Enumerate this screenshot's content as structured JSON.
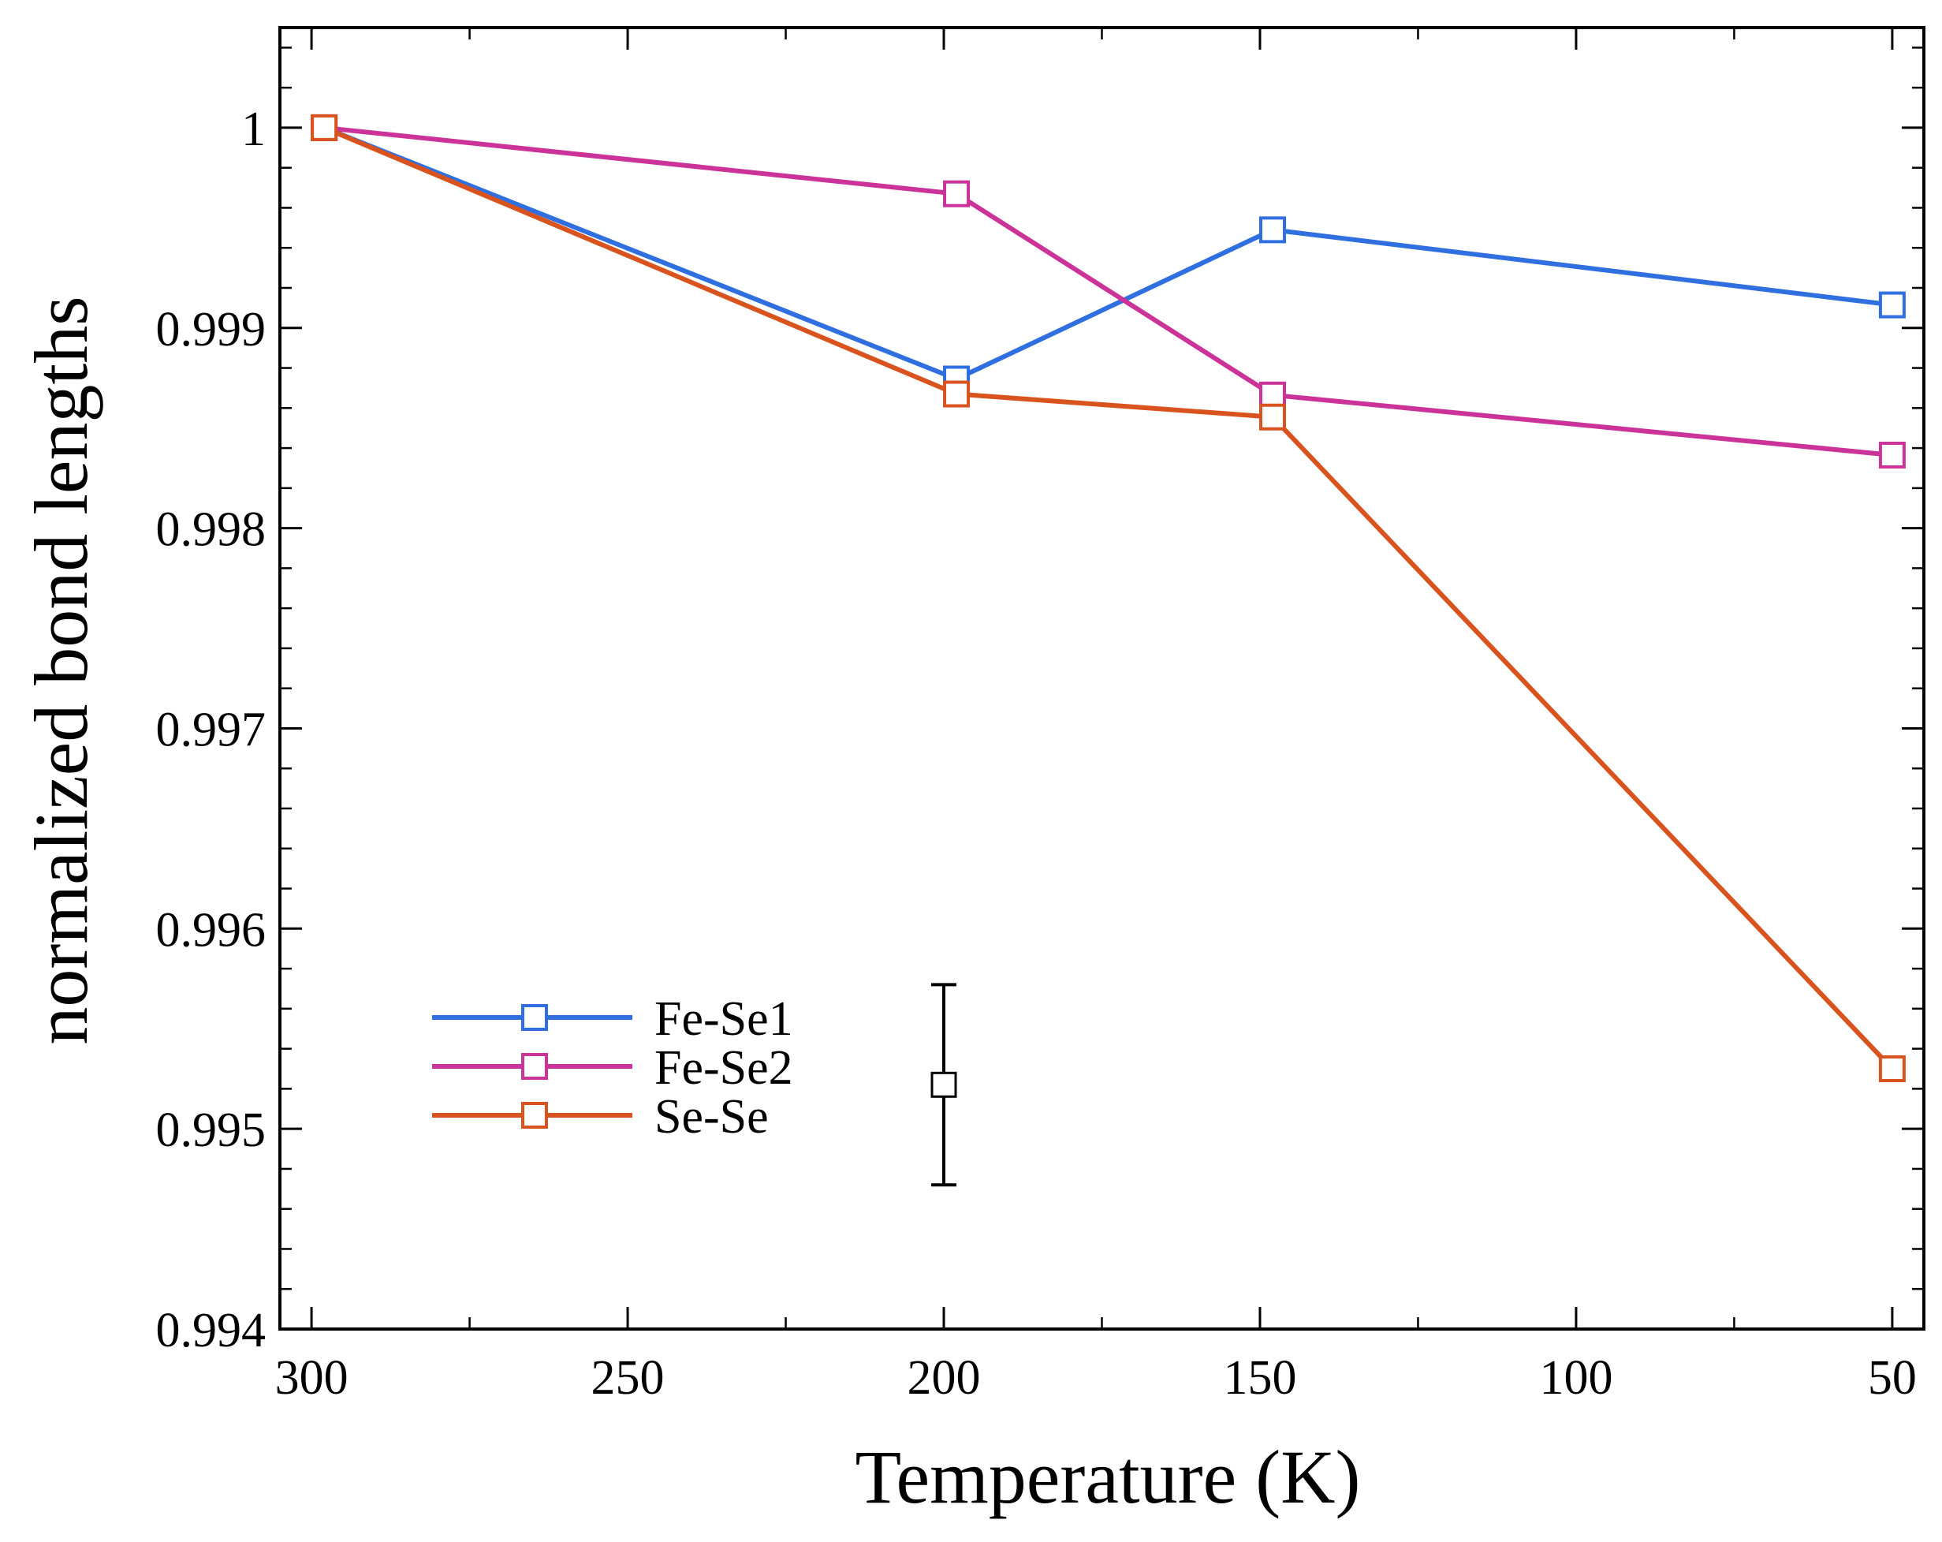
{
  "chart_data": {
    "type": "line",
    "title": "",
    "xlabel": "Temperature (K)",
    "ylabel": "normalized bond lengths",
    "xlim": [
      305,
      45
    ],
    "ylim": [
      0.994,
      1.0005
    ],
    "x_ticks": [
      300,
      250,
      200,
      150,
      100,
      50
    ],
    "x_tick_labels": [
      "300",
      "250",
      "200",
      "150",
      "100",
      "50"
    ],
    "y_ticks": [
      0.994,
      0.995,
      0.996,
      0.997,
      0.998,
      0.999,
      1.0
    ],
    "y_tick_labels": [
      "0.994",
      "0.995",
      "0.996",
      "0.997",
      "0.998",
      "0.999",
      "1"
    ],
    "grid": false,
    "legend_position": "lower-left",
    "series": [
      {
        "name": "Fe-Se1",
        "color": "#2f6fe0",
        "x": [
          298,
          198,
          148,
          50
        ],
        "y": [
          1.0,
          0.998745,
          0.99949,
          0.999115
        ]
      },
      {
        "name": "Fe-Se2",
        "color": "#cc3399",
        "x": [
          298,
          198,
          148,
          50
        ],
        "y": [
          1.0,
          0.99967,
          0.998665,
          0.998365
        ]
      },
      {
        "name": "Se-Se",
        "color": "#d9531e",
        "x": [
          298,
          198,
          148,
          50
        ],
        "y": [
          1.0,
          0.99867,
          0.998555,
          0.9953
        ]
      }
    ],
    "error_bar": {
      "x": 200,
      "y": 0.99522,
      "ymin": 0.99472,
      "ymax": 0.99572,
      "color": "#000000"
    }
  }
}
